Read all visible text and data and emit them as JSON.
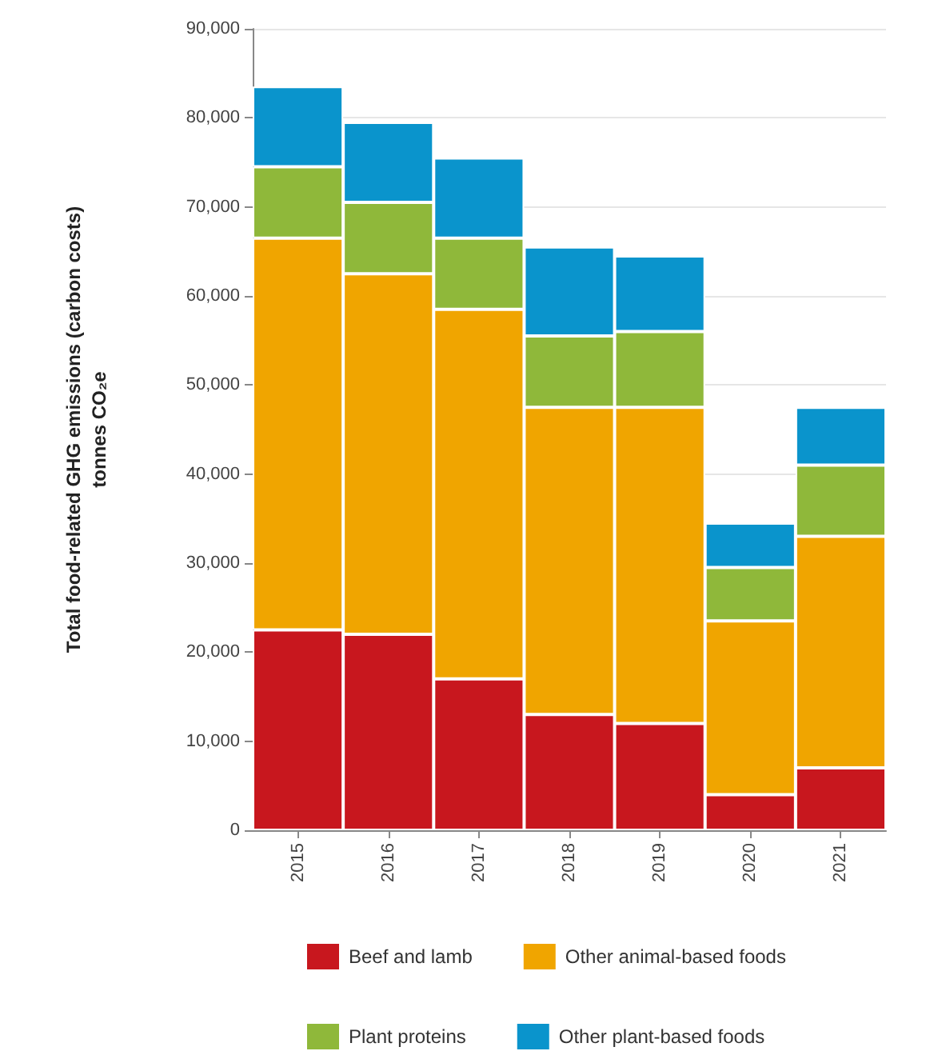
{
  "chart_data": {
    "type": "bar",
    "stacked": true,
    "ylabel": "Total food-related GHG emissions (carbon costs)\ntonnes CO₂e",
    "categories": [
      "2015",
      "2016",
      "2017",
      "2018",
      "2019",
      "2020",
      "2021"
    ],
    "series": [
      {
        "name": "Beef and lamb",
        "color": "#c8171e",
        "values": [
          22500,
          22000,
          17000,
          13000,
          12000,
          4000,
          7000
        ]
      },
      {
        "name": "Other animal-based foods",
        "color": "#f0a500",
        "values": [
          44000,
          40500,
          41500,
          34500,
          35500,
          19500,
          26000
        ]
      },
      {
        "name": "Plant proteins",
        "color": "#8fb83a",
        "values": [
          8000,
          8000,
          8000,
          8000,
          8500,
          6000,
          8000
        ]
      },
      {
        "name": "Other plant-based foods",
        "color": "#0a94cc",
        "values": [
          9000,
          9000,
          9000,
          10000,
          8500,
          5000,
          6500
        ]
      }
    ],
    "ylim": [
      0,
      90000
    ],
    "yticks": [
      0,
      {
        "value": 10000,
        "label": "10,000"
      },
      {
        "value": 20000,
        "label": "20,000"
      },
      {
        "value": 30000,
        "label": "30,000"
      },
      {
        "value": 40000,
        "label": "40,000"
      },
      {
        "value": 50000,
        "label": "50,000"
      },
      {
        "value": 60000,
        "label": "60,000"
      },
      {
        "value": 70000,
        "label": "70,000"
      },
      {
        "value": 80000,
        "label": "80,000"
      },
      {
        "value": 90000,
        "label": "90,000"
      }
    ],
    "grid": "y",
    "legend": "bottom"
  }
}
